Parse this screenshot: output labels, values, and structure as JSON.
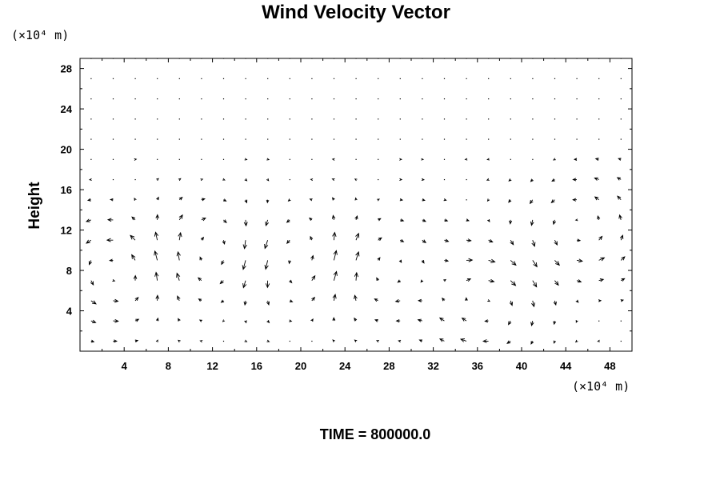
{
  "chart_data": {
    "type": "vector_field",
    "title": "Wind Velocity Vector",
    "ylabel": "Height",
    "x_unit": "(×10⁴ m)",
    "y_unit": "(×10⁴ m)",
    "xlim": [
      0,
      50
    ],
    "ylim": [
      0,
      29
    ],
    "x_ticks": [
      "4",
      "8",
      "12",
      "16",
      "20",
      "24",
      "28",
      "32",
      "36",
      "40",
      "44",
      "48"
    ],
    "y_ticks": [
      "4",
      "8",
      "12",
      "16",
      "20",
      "24",
      "28"
    ],
    "footer": "TIME = 800000.0",
    "grid_spacing": 2,
    "vortex_centers": [
      {
        "x": 3.5,
        "y": 8,
        "sense": "ccw"
      },
      {
        "x": 12,
        "y": 10,
        "sense": "cw"
      },
      {
        "x": 20,
        "y": 9,
        "sense": "ccw"
      },
      {
        "x": 27,
        "y": 8,
        "sense": "cw"
      },
      {
        "x": 37,
        "y": 5,
        "sense": "cw"
      },
      {
        "x": 45,
        "y": 12,
        "sense": "ccw"
      }
    ],
    "grid": false
  }
}
